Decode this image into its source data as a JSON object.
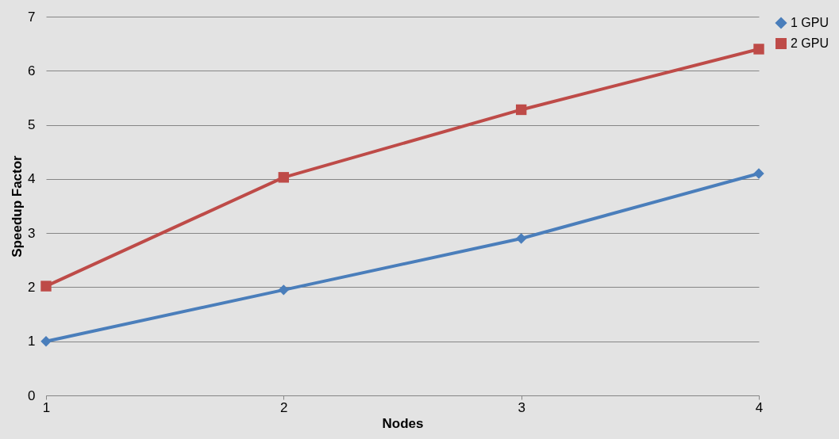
{
  "chart_data": {
    "type": "line",
    "xlabel": "Nodes",
    "ylabel": "Speedup Factor",
    "x": [
      1,
      2,
      3,
      4
    ],
    "series": [
      {
        "name": "1 GPU",
        "color": "#4a7ebb",
        "marker": "diamond",
        "values": [
          1,
          1.95,
          2.9,
          4.1
        ]
      },
      {
        "name": "2 GPU",
        "color": "#be4b48",
        "marker": "square",
        "values": [
          2.02,
          4.03,
          5.28,
          6.4
        ]
      }
    ],
    "xlim": [
      1,
      4
    ],
    "xticks": [
      1,
      2,
      3,
      4
    ],
    "ylim": [
      0,
      7
    ],
    "yticks": [
      0,
      1,
      2,
      3,
      4,
      5,
      6,
      7
    ],
    "grid": "y",
    "legend": "right",
    "line_style": "solid"
  }
}
